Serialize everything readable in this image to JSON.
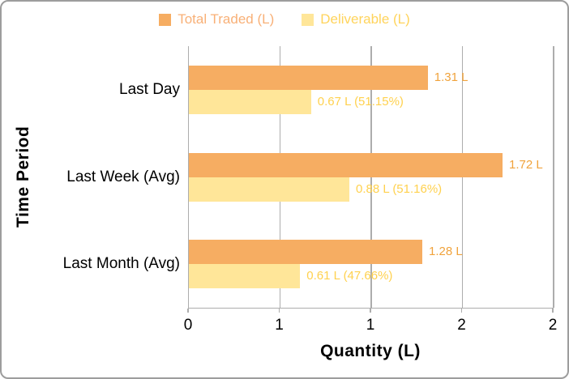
{
  "chart_data": {
    "type": "bar",
    "orientation": "horizontal",
    "xlabel": "Quantity (L)",
    "ylabel": "Time Period",
    "xlim": [
      0,
      2
    ],
    "categories": [
      "Last Day",
      "Last Week (Avg)",
      "Last Month (Avg)"
    ],
    "series": [
      {
        "name": "Total Traded (L)",
        "values": [
          1.31,
          1.72,
          1.28
        ],
        "data_labels": [
          "1.31 L",
          "1.72 L",
          "1.28 L"
        ],
        "bar_color": "#F6AD62",
        "legend_text_color": "#F8B077",
        "label_color": "#F0A33C"
      },
      {
        "name": "Deliverable (L)",
        "values": [
          0.67,
          0.88,
          0.61
        ],
        "data_labels": [
          "0.67 L (51.15%)",
          "0.88 L (51.16%)",
          "0.61 L (47.66%)"
        ],
        "bar_color": "#FFE699",
        "legend_text_color": "#FFD45C",
        "label_color": "#FFD14E"
      }
    ],
    "x_ticks": [
      {
        "value": 0,
        "label": "0"
      },
      {
        "value": 0.5,
        "label": "1"
      },
      {
        "value": 1,
        "label": "1"
      },
      {
        "value": 1.5,
        "label": "2"
      },
      {
        "value": 2,
        "label": "2"
      }
    ],
    "grid": true,
    "legend_position": "top",
    "grid_color": "#ADADAD",
    "axis_text_color": "#000000",
    "border_color": "#9D9D9D"
  }
}
